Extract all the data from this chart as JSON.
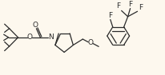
{
  "bg_color": "#fdf8ee",
  "line_color": "#2a2a2a",
  "figsize": [
    2.06,
    0.94
  ],
  "dpi": 100,
  "xlim": [
    0,
    206
  ],
  "ylim": [
    0,
    94
  ]
}
